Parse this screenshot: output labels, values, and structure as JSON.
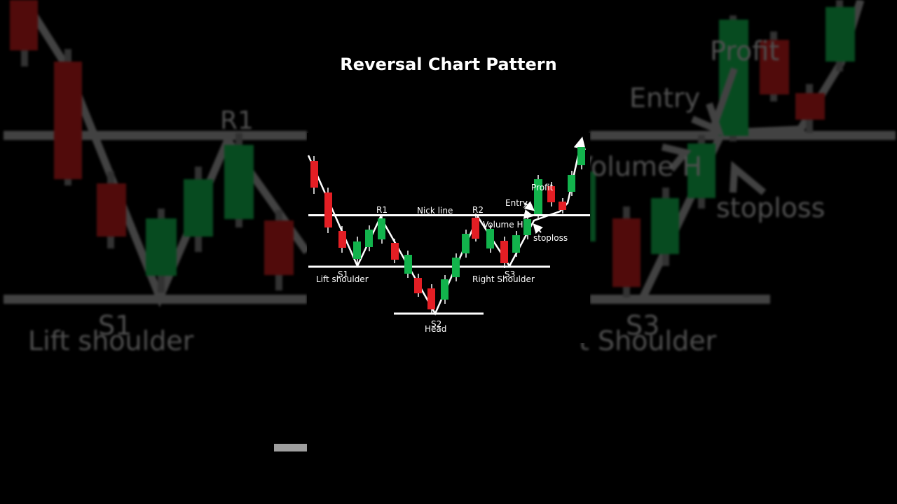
{
  "title": "Reversal Chart Pattern",
  "colors": {
    "bullish": "#12b34c",
    "bearish": "#e31e24",
    "lines": "#ffffff",
    "background": "#000000"
  },
  "labels": {
    "r1": "R1",
    "r2": "R2",
    "neck_line": "Nick line",
    "s1": "S1",
    "s2": "S2",
    "s3": "S3",
    "left_shoulder": "Lift shoulder",
    "head": "Head",
    "right_shoulder": "Right Shoulder",
    "entry": "Entry",
    "volume": "Volume H",
    "stoploss": "stoploss",
    "profit": "Profit"
  },
  "background_labels": {
    "r1": "R1",
    "s1": "S1",
    "left_shoulder": "Lift shoulder",
    "entry": "Entry",
    "profit": "Profit",
    "volume": "Volume H",
    "stoploss": "stoploss",
    "s3": "S3",
    "right_shoulder": "t Shoulder"
  }
}
